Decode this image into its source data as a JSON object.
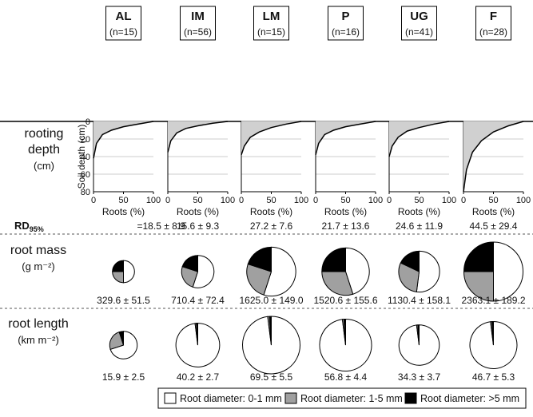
{
  "rows": [
    {
      "title": "rooting",
      "title2": "depth",
      "unit": "(cm)"
    },
    {
      "title": "root mass",
      "unit": "(g m⁻²)"
    },
    {
      "title": "root length",
      "unit": "(km m⁻²)"
    }
  ],
  "depth_axis": {
    "ylabel": "Soil depth (cm)",
    "xlabel": "Roots (%)",
    "xlim": [
      0,
      100
    ],
    "ylim": [
      0,
      80
    ],
    "xticks": [
      0,
      50,
      100
    ],
    "yticks": [
      0,
      20,
      40,
      60,
      80
    ]
  },
  "rd_prefix": {
    "main": "RD",
    "sub": "95%"
  },
  "columns": [
    {
      "label": "AL",
      "n": "(n=15)",
      "profile": {
        "roots": [
          0,
          5,
          15,
          30,
          50,
          75,
          100
        ],
        "depth": [
          42,
          25,
          15,
          10,
          6,
          3,
          0
        ]
      },
      "rd": {
        "mean": 18.5,
        "sd": 8.9,
        "label": "=18.5 ± 8.9"
      },
      "mass": {
        "mean": 329.6,
        "sd": 51.5,
        "label": "329.6 ± 51.5",
        "fractions": [
          50,
          25,
          25
        ]
      },
      "length": {
        "mean": 15.9,
        "sd": 2.5,
        "label": "15.9 ± 2.5",
        "fractions": [
          70,
          25,
          5
        ]
      }
    },
    {
      "label": "IM",
      "n": "(n=56)",
      "profile": {
        "roots": [
          0,
          5,
          15,
          30,
          50,
          75,
          100
        ],
        "depth": [
          35,
          22,
          13,
          8,
          5,
          2,
          0
        ]
      },
      "rd": {
        "mean": 15.6,
        "sd": 9.3,
        "label": "15.6 ± 9.3"
      },
      "mass": {
        "mean": 710.4,
        "sd": 72.4,
        "label": "710.4 ± 72.4",
        "fractions": [
          55,
          25,
          20
        ]
      },
      "length": {
        "mean": 40.2,
        "sd": 2.7,
        "label": "40.2 ± 2.7",
        "fractions": [
          98,
          1,
          1
        ]
      }
    },
    {
      "label": "LM",
      "n": "(n=15)",
      "profile": {
        "roots": [
          0,
          5,
          15,
          30,
          50,
          75,
          100
        ],
        "depth": [
          38,
          28,
          18,
          12,
          7,
          3,
          0
        ]
      },
      "rd": {
        "mean": 27.2,
        "sd": 7.6,
        "label": "27.2 ± 7.6"
      },
      "mass": {
        "mean": 1625.0,
        "sd": 149.0,
        "label": "1625.0 ± 149.0",
        "fractions": [
          55,
          25,
          20
        ]
      },
      "length": {
        "mean": 69.5,
        "sd": 5.5,
        "label": "69.5 ± 5.5",
        "fractions": [
          98,
          1,
          1
        ]
      }
    },
    {
      "label": "P",
      "n": "(n=16)",
      "profile": {
        "roots": [
          0,
          5,
          15,
          30,
          50,
          75,
          100
        ],
        "depth": [
          38,
          25,
          15,
          10,
          6,
          3,
          0
        ]
      },
      "rd": {
        "mean": 21.7,
        "sd": 13.6,
        "label": "21.7 ± 13.6"
      },
      "mass": {
        "mean": 1520.6,
        "sd": 155.6,
        "label": "1520.6 ± 155.6",
        "fractions": [
          45,
          30,
          25
        ]
      },
      "length": {
        "mean": 56.8,
        "sd": 4.4,
        "label": "56.8 ± 4.4",
        "fractions": [
          98,
          1,
          1
        ]
      }
    },
    {
      "label": "UG",
      "n": "(n=41)",
      "profile": {
        "roots": [
          0,
          5,
          15,
          30,
          50,
          75,
          100
        ],
        "depth": [
          40,
          28,
          18,
          11,
          7,
          3,
          0
        ]
      },
      "rd": {
        "mean": 24.6,
        "sd": 11.9,
        "label": "24.6 ± 11.9"
      },
      "mass": {
        "mean": 1130.4,
        "sd": 158.1,
        "label": "1130.4 ± 158.1",
        "fractions": [
          52,
          30,
          18
        ]
      },
      "length": {
        "mean": 34.3,
        "sd": 3.7,
        "label": "34.3 ± 3.7",
        "fractions": [
          98,
          1,
          1
        ]
      }
    },
    {
      "label": "F",
      "n": "(n=28)",
      "profile": {
        "roots": [
          0,
          5,
          15,
          30,
          50,
          75,
          100
        ],
        "depth": [
          80,
          55,
          35,
          22,
          12,
          5,
          0
        ]
      },
      "rd": {
        "mean": 44.5,
        "sd": 29.4,
        "label": "44.5 ± 29.4"
      },
      "mass": {
        "mean": 2363.1,
        "sd": 189.2,
        "label": "2363.1 ± 189.2",
        "fractions": [
          50,
          25,
          25
        ]
      },
      "length": {
        "mean": 46.7,
        "sd": 5.3,
        "label": "46.7 ± 5.3",
        "fractions": [
          98,
          1,
          1
        ]
      }
    }
  ],
  "legend": [
    {
      "label": "Root diameter: 0-1 mm",
      "color": "#ffffff"
    },
    {
      "label": "Root diameter: 1-5 mm",
      "color": "#a0a0a0"
    },
    {
      "label": "Root diameter: >5 mm",
      "color": "#000000"
    }
  ]
}
